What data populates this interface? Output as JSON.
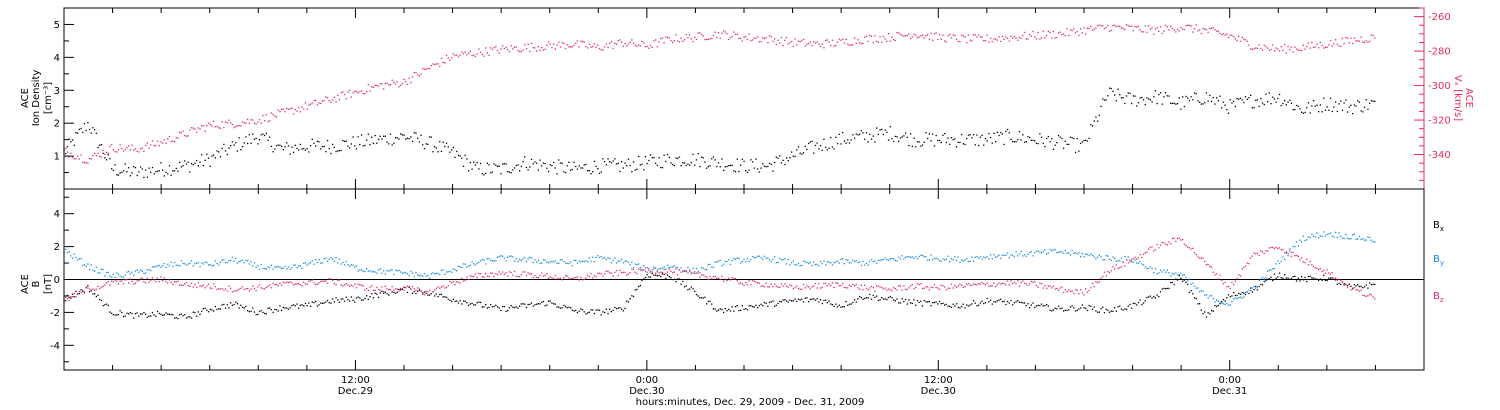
{
  "chart_data": [
    {
      "type": "scatter",
      "panel": "top",
      "ylabel_left": [
        "ACE",
        "Ion Density",
        "[cm⁻³]"
      ],
      "ylabel_right": [
        "ACE",
        "Vₓ [km/s]"
      ],
      "ylim_left": [
        0,
        5.5
      ],
      "ylim_right": [
        -360,
        -255
      ],
      "left_ticks": [
        "1",
        "2",
        "3",
        "4",
        "5"
      ],
      "right_ticks": [
        "-340",
        "-320",
        "-300",
        "-280",
        "-260"
      ],
      "series": [
        {
          "role": "ion-density",
          "color": "#000000",
          "axis": "left",
          "x_hours": [
            0,
            1,
            2,
            3,
            4,
            5,
            6,
            7,
            8,
            9,
            10,
            11,
            12,
            13,
            14,
            15,
            16,
            17,
            18,
            19,
            20,
            21,
            22,
            23,
            24,
            25,
            26,
            27,
            28,
            29,
            30,
            31,
            32,
            33,
            34,
            35,
            36,
            37,
            38,
            39,
            40,
            41,
            42,
            43,
            44,
            45,
            46,
            47,
            48,
            49,
            50,
            51,
            52,
            53,
            54
          ],
          "values": [
            1.1,
            2.0,
            0.6,
            0.5,
            0.6,
            0.7,
            0.9,
            1.3,
            1.6,
            1.2,
            1.3,
            1.3,
            1.4,
            1.5,
            1.6,
            1.4,
            1.1,
            0.6,
            0.6,
            0.8,
            0.7,
            0.6,
            0.7,
            0.7,
            0.8,
            0.9,
            0.9,
            0.8,
            0.7,
            0.7,
            1.0,
            1.3,
            1.5,
            1.6,
            1.7,
            1.5,
            1.5,
            1.5,
            1.5,
            1.6,
            1.5,
            1.4,
            1.3,
            2.9,
            2.7,
            2.8,
            2.6,
            2.8,
            2.5,
            2.7,
            2.8,
            2.4,
            2.6,
            2.5,
            2.6
          ]
        },
        {
          "role": "vx",
          "color": "#e62e5c",
          "axis": "right",
          "x_hours": [
            0,
            1,
            2,
            3,
            4,
            5,
            6,
            7,
            8,
            9,
            10,
            11,
            12,
            13,
            14,
            15,
            16,
            17,
            18,
            19,
            20,
            21,
            22,
            23,
            24,
            25,
            26,
            27,
            28,
            29,
            30,
            31,
            32,
            33,
            34,
            35,
            36,
            37,
            38,
            39,
            40,
            41,
            42,
            43,
            44,
            45,
            46,
            47,
            48,
            49,
            50,
            51,
            52,
            53,
            54
          ],
          "values": [
            -338,
            -343,
            -336,
            -337,
            -333,
            -328,
            -323,
            -322,
            -320,
            -316,
            -312,
            -308,
            -304,
            -300,
            -298,
            -290,
            -283,
            -281,
            -279,
            -278,
            -277,
            -276,
            -278,
            -275,
            -277,
            -273,
            -272,
            -270,
            -272,
            -273,
            -275,
            -276,
            -275,
            -273,
            -272,
            -270,
            -272,
            -273,
            -273,
            -272,
            -271,
            -270,
            -268,
            -266,
            -267,
            -268,
            -266,
            -268,
            -271,
            -277,
            -279,
            -278,
            -276,
            -274,
            -272
          ]
        }
      ]
    },
    {
      "type": "scatter",
      "panel": "bottom",
      "ylabel_left": [
        "ACE",
        "B",
        "[nT]"
      ],
      "ylim": [
        -5.5,
        5.5
      ],
      "ticks": [
        "-4",
        "-2",
        "0",
        "2",
        "4"
      ],
      "series": [
        {
          "name_main": "B",
          "name_sub": "x",
          "color": "#000000",
          "x_hours": [
            0,
            1,
            2,
            3,
            4,
            5,
            6,
            7,
            8,
            9,
            10,
            11,
            12,
            13,
            14,
            15,
            16,
            17,
            18,
            19,
            20,
            21,
            22,
            23,
            24,
            25,
            26,
            27,
            28,
            29,
            30,
            31,
            32,
            33,
            34,
            35,
            36,
            37,
            38,
            39,
            40,
            41,
            42,
            43,
            44,
            45,
            46,
            47,
            48,
            49,
            50,
            51,
            52,
            53,
            54
          ],
          "values": [
            -1.2,
            -0.5,
            -2.0,
            -2.2,
            -2.1,
            -2.3,
            -1.8,
            -1.5,
            -2.0,
            -1.7,
            -1.6,
            -1.3,
            -1.2,
            -0.9,
            -0.6,
            -0.8,
            -1.2,
            -1.5,
            -1.8,
            -1.6,
            -1.4,
            -1.9,
            -2.0,
            -1.8,
            0.3,
            0.2,
            -0.8,
            -1.9,
            -1.7,
            -1.5,
            -1.3,
            -1.2,
            -1.6,
            -1.0,
            -1.2,
            -1.4,
            -1.5,
            -1.6,
            -1.3,
            -1.4,
            -1.6,
            -1.8,
            -1.7,
            -1.9,
            -1.6,
            -1.0,
            0.2,
            -2.2,
            -1.0,
            -0.6,
            0.3,
            0.0,
            0.1,
            -0.5,
            -0.3
          ]
        },
        {
          "name_main": "B",
          "name_sub": "y",
          "color": "#1a8ce6",
          "x_hours": [
            0,
            1,
            2,
            3,
            4,
            5,
            6,
            7,
            8,
            9,
            10,
            11,
            12,
            13,
            14,
            15,
            16,
            17,
            18,
            19,
            20,
            21,
            22,
            23,
            24,
            25,
            26,
            27,
            28,
            29,
            30,
            31,
            32,
            33,
            34,
            35,
            36,
            37,
            38,
            39,
            40,
            41,
            42,
            43,
            44,
            45,
            46,
            47,
            48,
            49,
            50,
            51,
            52,
            53,
            54
          ],
          "values": [
            1.8,
            0.8,
            0.2,
            0.4,
            0.8,
            1.0,
            0.9,
            1.2,
            0.8,
            0.6,
            0.9,
            1.3,
            0.7,
            0.5,
            0.4,
            0.2,
            0.6,
            1.0,
            1.3,
            1.2,
            1.1,
            1.0,
            1.3,
            1.1,
            0.6,
            0.8,
            0.5,
            1.0,
            1.2,
            1.3,
            1.0,
            0.9,
            1.1,
            1.0,
            1.2,
            1.4,
            1.3,
            1.2,
            1.4,
            1.5,
            1.6,
            1.7,
            1.5,
            1.3,
            1.2,
            0.5,
            0.3,
            -1.0,
            -1.5,
            -0.5,
            1.0,
            2.5,
            2.8,
            2.6,
            2.4
          ]
        },
        {
          "name_main": "B",
          "name_sub": "z",
          "color": "#e62e5c",
          "x_hours": [
            0,
            1,
            2,
            3,
            4,
            5,
            6,
            7,
            8,
            9,
            10,
            11,
            12,
            13,
            14,
            15,
            16,
            17,
            18,
            19,
            20,
            21,
            22,
            23,
            24,
            25,
            26,
            27,
            28,
            29,
            30,
            31,
            32,
            33,
            34,
            35,
            36,
            37,
            38,
            39,
            40,
            41,
            42,
            43,
            44,
            45,
            46,
            47,
            48,
            49,
            50,
            51,
            52,
            53,
            54
          ],
          "values": [
            -1.3,
            -0.6,
            -0.2,
            -0.1,
            0.0,
            -0.3,
            -0.4,
            -0.6,
            -0.5,
            -0.3,
            -0.2,
            -0.1,
            -0.4,
            -0.6,
            -0.5,
            -0.8,
            -0.2,
            0.2,
            0.4,
            0.3,
            0.2,
            0.0,
            0.3,
            0.4,
            0.6,
            0.5,
            0.3,
            0.1,
            -0.2,
            -0.3,
            -0.5,
            -0.4,
            -0.3,
            -0.5,
            -0.6,
            -0.4,
            -0.5,
            -0.4,
            -0.3,
            -0.2,
            -0.3,
            -0.6,
            -0.8,
            0.5,
            1.2,
            2.0,
            2.5,
            1.0,
            -0.5,
            1.5,
            2.0,
            1.2,
            0.5,
            -0.5,
            -1.2
          ]
        }
      ]
    }
  ],
  "x_axis": {
    "range_hours": [
      0,
      56
    ],
    "ticks": [
      {
        "hour": 12,
        "time": "12:00",
        "date": "Dec.29"
      },
      {
        "hour": 24,
        "time": "0:00",
        "date": "Dec.30"
      },
      {
        "hour": 36,
        "time": "12:00",
        "date": "Dec.30"
      },
      {
        "hour": 48,
        "time": "0:00",
        "date": "Dec.31"
      }
    ],
    "label": "hours:minutes, Dec. 29, 2009 - Dec. 31, 2009"
  }
}
